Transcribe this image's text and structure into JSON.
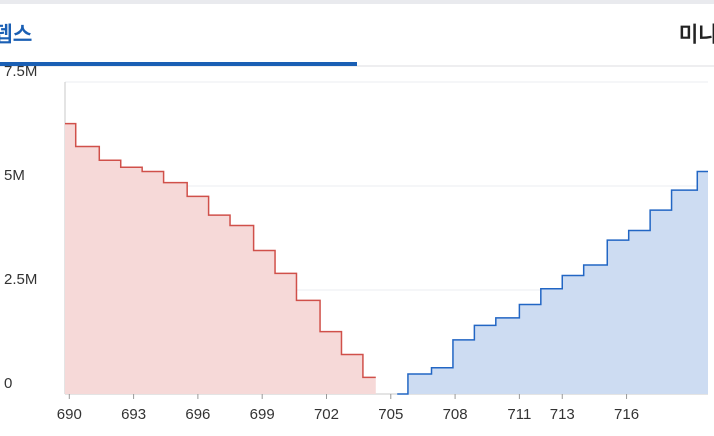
{
  "tabs": [
    {
      "label": "마켓뎁스",
      "active": true
    },
    {
      "label": "미니차트",
      "active": false
    }
  ],
  "chart_data": {
    "type": "step-area",
    "series": [
      {
        "color": "#d0504a",
        "fill": "#f6d9d8",
        "x": [
          689.8,
          690.3,
          691.4,
          692.4,
          693.4,
          694.4,
          695.5,
          696.5,
          697.5,
          698.6,
          699.6,
          700.6,
          701.7,
          702.7,
          703.7,
          704.3
        ],
        "values": [
          6500000,
          5950000,
          5620000,
          5450000,
          5350000,
          5080000,
          4750000,
          4300000,
          4050000,
          3450000,
          2900000,
          2250000,
          1500000,
          950000,
          400000,
          400000
        ]
      },
      {
        "color": "#2266c4",
        "fill": "#cddcf2",
        "x": [
          705.3,
          705.8,
          706.9,
          707.9,
          708.9,
          709.9,
          711.0,
          712.0,
          713.0,
          714.0,
          715.1,
          716.1,
          717.1,
          718.1,
          719.3,
          719.8
        ],
        "values": [
          0,
          480000,
          630000,
          1300000,
          1650000,
          1830000,
          2150000,
          2530000,
          2850000,
          3100000,
          3700000,
          3930000,
          4420000,
          4900000,
          5350000,
          5350000
        ]
      }
    ],
    "xlim": [
      689.8,
      719.8
    ],
    "ylim": [
      0,
      7500000
    ],
    "xticks": [
      690,
      693,
      696,
      699,
      702,
      705,
      708,
      711,
      713,
      716
    ],
    "yticks": [
      0,
      {
        "value": 2500000,
        "label": "2.5M"
      },
      {
        "value": 5000000,
        "label": "5M"
      },
      {
        "value": 7500000,
        "label": "7.5M"
      }
    ],
    "grid": true
  }
}
